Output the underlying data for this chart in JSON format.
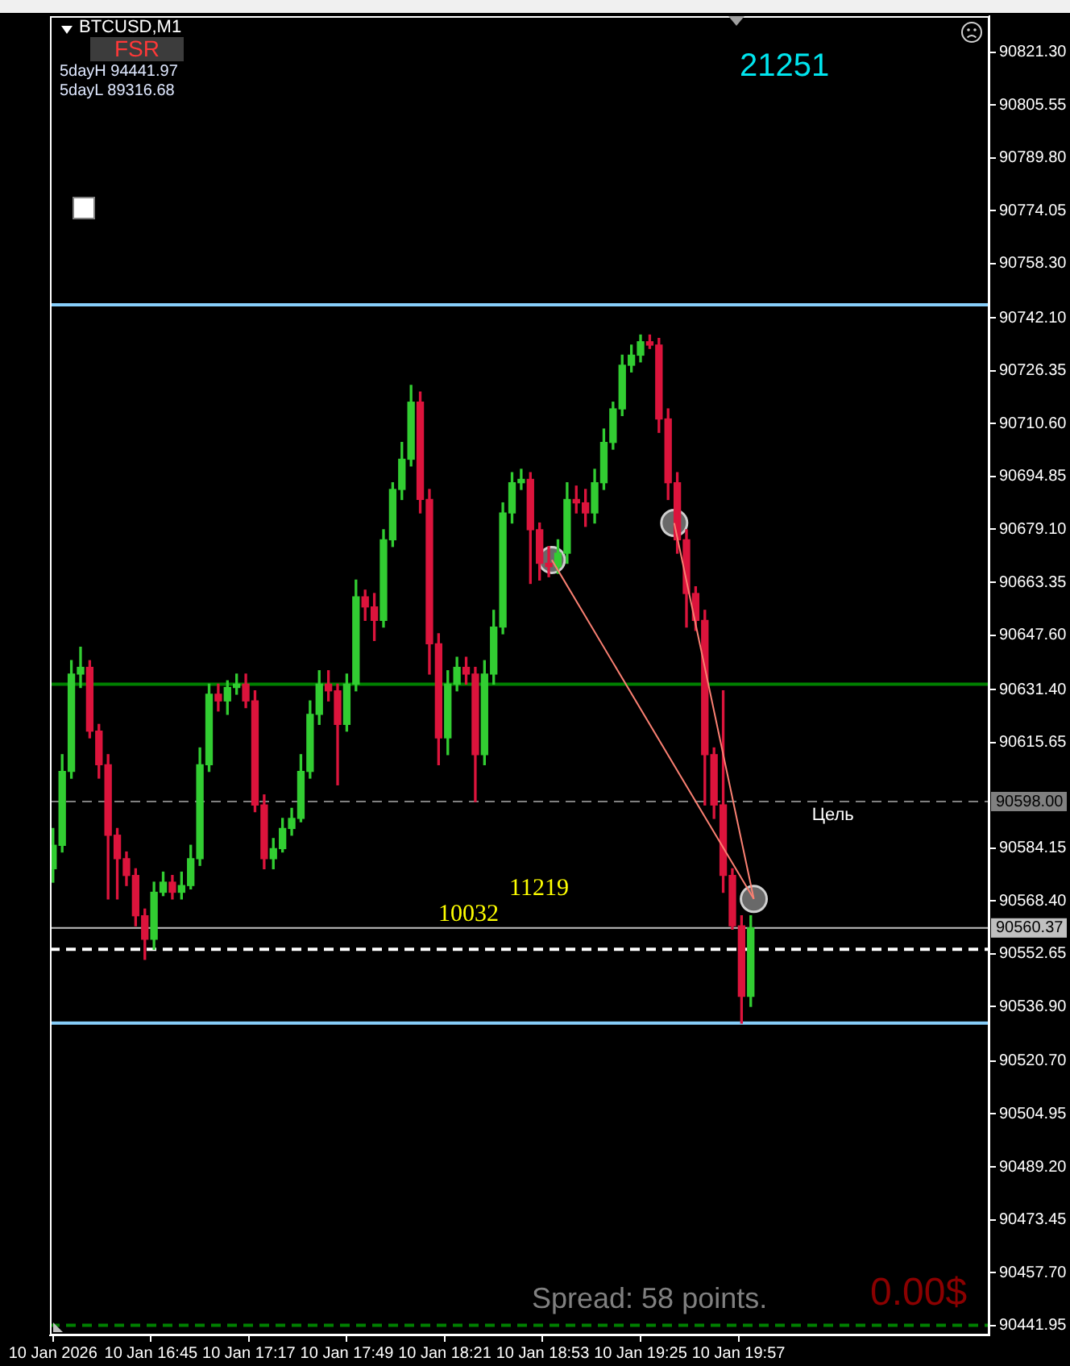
{
  "chart_data": {
    "type": "candlestick",
    "title": "BTCUSD,M1",
    "x": [
      "2026-01-10T16:13",
      "2026-01-10T16:16",
      "2026-01-10T16:19",
      "2026-01-10T16:22",
      "2026-01-10T16:25",
      "2026-01-10T16:28",
      "2026-01-10T16:31",
      "2026-01-10T16:34",
      "2026-01-10T16:37",
      "2026-01-10T16:40",
      "2026-01-10T16:43",
      "2026-01-10T16:46",
      "2026-01-10T16:49",
      "2026-01-10T16:52",
      "2026-01-10T16:55",
      "2026-01-10T16:58",
      "2026-01-10T17:01",
      "2026-01-10T17:04",
      "2026-01-10T17:07",
      "2026-01-10T17:10",
      "2026-01-10T17:13",
      "2026-01-10T17:16",
      "2026-01-10T17:19",
      "2026-01-10T17:22",
      "2026-01-10T17:25",
      "2026-01-10T17:28",
      "2026-01-10T17:31",
      "2026-01-10T17:34",
      "2026-01-10T17:37",
      "2026-01-10T17:40",
      "2026-01-10T17:43",
      "2026-01-10T17:46",
      "2026-01-10T17:49",
      "2026-01-10T17:52",
      "2026-01-10T17:55",
      "2026-01-10T17:58",
      "2026-01-10T18:01",
      "2026-01-10T18:04",
      "2026-01-10T18:07",
      "2026-01-10T18:10",
      "2026-01-10T18:13",
      "2026-01-10T18:16",
      "2026-01-10T18:19",
      "2026-01-10T18:22",
      "2026-01-10T18:25",
      "2026-01-10T18:28",
      "2026-01-10T18:31",
      "2026-01-10T18:34",
      "2026-01-10T18:37",
      "2026-01-10T18:40",
      "2026-01-10T18:43",
      "2026-01-10T18:46",
      "2026-01-10T18:49",
      "2026-01-10T18:52",
      "2026-01-10T18:55",
      "2026-01-10T18:58",
      "2026-01-10T19:01",
      "2026-01-10T19:04",
      "2026-01-10T19:07",
      "2026-01-10T19:10",
      "2026-01-10T19:13",
      "2026-01-10T19:16",
      "2026-01-10T19:19",
      "2026-01-10T19:22",
      "2026-01-10T19:25",
      "2026-01-10T19:28",
      "2026-01-10T19:31",
      "2026-01-10T19:34",
      "2026-01-10T19:37",
      "2026-01-10T19:40",
      "2026-01-10T19:43",
      "2026-01-10T19:46",
      "2026-01-10T19:49",
      "2026-01-10T19:52",
      "2026-01-10T19:55",
      "2026-01-10T19:58",
      "2026-01-10T20:01"
    ],
    "ohlc": [
      [
        90578,
        90590,
        90574,
        90585
      ],
      [
        90585,
        90612,
        90583,
        90607
      ],
      [
        90607,
        90640,
        90605,
        90636
      ],
      [
        90636,
        90644,
        90632,
        90638
      ],
      [
        90638,
        90640,
        90617,
        90619
      ],
      [
        90619,
        90621,
        90605,
        90609
      ],
      [
        90609,
        90612,
        90569,
        90588
      ],
      [
        90588,
        90590,
        90569,
        90581
      ],
      [
        90581,
        90583,
        90573,
        90576
      ],
      [
        90576,
        90578,
        90561,
        90564
      ],
      [
        90564,
        90566,
        90551,
        90557
      ],
      [
        90557,
        90574,
        90554,
        90571
      ],
      [
        90571,
        90577,
        90570,
        90574
      ],
      [
        90574,
        90576,
        90569,
        90571
      ],
      [
        90571,
        90577,
        90569,
        90573
      ],
      [
        90573,
        90585,
        90572,
        90581
      ],
      [
        90581,
        90614,
        90579,
        90609
      ],
      [
        90609,
        90633,
        90607,
        90630
      ],
      [
        90630,
        90633,
        90625,
        90628
      ],
      [
        90628,
        90634,
        90624,
        90632
      ],
      [
        90632,
        90636,
        90630,
        90633
      ],
      [
        90633,
        90636,
        90626,
        90628
      ],
      [
        90628,
        90631,
        90595,
        90597
      ],
      [
        90597,
        90600,
        90578,
        90581
      ],
      [
        90581,
        90587,
        90578,
        90584
      ],
      [
        90584,
        90593,
        90583,
        90590
      ],
      [
        90590,
        90596,
        90588,
        90593
      ],
      [
        90593,
        90612,
        90592,
        90607
      ],
      [
        90607,
        90628,
        90605,
        90624
      ],
      [
        90624,
        90637,
        90621,
        90633
      ],
      [
        90633,
        90637,
        90628,
        90631
      ],
      [
        90631,
        90633,
        90603,
        90621
      ],
      [
        90621,
        90636,
        90619,
        90633
      ],
      [
        90633,
        90664,
        90631,
        90659
      ],
      [
        90659,
        90661,
        90652,
        90656
      ],
      [
        90656,
        90660,
        90646,
        90652
      ],
      [
        90652,
        90679,
        90650,
        90676
      ],
      [
        90676,
        90693,
        90674,
        90691
      ],
      [
        90691,
        90705,
        90688,
        90700
      ],
      [
        90700,
        90722,
        90698,
        90717
      ],
      [
        90717,
        90720,
        90684,
        90688
      ],
      [
        90688,
        90691,
        90636,
        90645
      ],
      [
        90645,
        90648,
        90609,
        90617
      ],
      [
        90617,
        90637,
        90612,
        90633
      ],
      [
        90633,
        90641,
        90631,
        90638
      ],
      [
        90638,
        90641,
        90633,
        90636
      ],
      [
        90636,
        90638,
        90598,
        90612
      ],
      [
        90612,
        90640,
        90609,
        90636
      ],
      [
        90636,
        90655,
        90633,
        90650
      ],
      [
        90650,
        90687,
        90648,
        90684
      ],
      [
        90684,
        90696,
        90681,
        90693
      ],
      [
        90693,
        90697,
        90691,
        90694
      ],
      [
        90694,
        90696,
        90663,
        90679
      ],
      [
        90679,
        90681,
        90664,
        90669
      ],
      [
        90669,
        90674,
        90665,
        90668
      ],
      [
        90668,
        90676,
        90666,
        90672
      ],
      [
        90672,
        90693,
        90669,
        90688
      ],
      [
        90688,
        90692,
        90684,
        90687
      ],
      [
        90687,
        90691,
        90680,
        90684
      ],
      [
        90684,
        90697,
        90681,
        90693
      ],
      [
        90693,
        90709,
        90691,
        90705
      ],
      [
        90705,
        90717,
        90703,
        90715
      ],
      [
        90715,
        90731,
        90713,
        90728
      ],
      [
        90728,
        90734,
        90726,
        90731
      ],
      [
        90731,
        90737,
        90729,
        90735
      ],
      [
        90735,
        90737,
        90733,
        90734
      ],
      [
        90734,
        90736,
        90708,
        90712
      ],
      [
        90712,
        90715,
        90688,
        90693
      ],
      [
        90693,
        90696,
        90672,
        90676
      ],
      [
        90676,
        90679,
        90650,
        90660
      ],
      [
        90660,
        90662,
        90649,
        90652
      ],
      [
        90652,
        90655,
        90597,
        90612
      ],
      [
        90612,
        90614,
        90593,
        90597
      ],
      [
        90597,
        90631,
        90571,
        90576
      ],
      [
        90576,
        90578,
        90560,
        90561
      ],
      [
        90561,
        90564,
        90532,
        90540
      ],
      [
        90540,
        90564,
        90537,
        90560.37
      ]
    ],
    "colors": [
      "#32cd32",
      "#32cd32",
      "#32cd32",
      "#32cd32",
      "#dc143c",
      "#dc143c",
      "#dc143c",
      "#dc143c",
      "#dc143c",
      "#dc143c",
      "#dc143c",
      "#32cd32",
      "#32cd32",
      "#dc143c",
      "#32cd32",
      "#32cd32",
      "#32cd32",
      "#32cd32",
      "#dc143c",
      "#32cd32",
      "#32cd32",
      "#dc143c",
      "#dc143c",
      "#dc143c",
      "#32cd32",
      "#32cd32",
      "#32cd32",
      "#32cd32",
      "#32cd32",
      "#32cd32",
      "#dc143c",
      "#dc143c",
      "#32cd32",
      "#32cd32",
      "#dc143c",
      "#dc143c",
      "#32cd32",
      "#32cd32",
      "#32cd32",
      "#32cd32",
      "#dc143c",
      "#dc143c",
      "#dc143c",
      "#32cd32",
      "#32cd32",
      "#dc143c",
      "#dc143c",
      "#32cd32",
      "#32cd32",
      "#32cd32",
      "#32cd32",
      "#32cd32",
      "#dc143c",
      "#dc143c",
      "#dc143c",
      "#32cd32",
      "#32cd32",
      "#dc143c",
      "#dc143c",
      "#32cd32",
      "#32cd32",
      "#32cd32",
      "#32cd32",
      "#32cd32",
      "#32cd32",
      "#dc143c",
      "#dc143c",
      "#dc143c",
      "#dc143c",
      "#dc143c",
      "#dc143c",
      "#dc143c",
      "#dc143c",
      "#dc143c",
      "#dc143c",
      "#dc143c",
      "#32cd32"
    ],
    "series": [
      {
        "type": "line",
        "color": "#fa8072",
        "x": [
          "2026-01-10T18:56",
          "2026-01-10T20:02"
        ],
        "values": [
          90670,
          90569
        ]
      },
      {
        "type": "line",
        "color": "#fa8072",
        "x": [
          "2026-01-10T19:36",
          "2026-01-10T20:02"
        ],
        "values": [
          90681,
          90569
        ]
      },
      {
        "type": "scatter",
        "color": "#696969",
        "marker": "circle",
        "x": [
          "2026-01-10T18:56",
          "2026-01-10T19:36",
          "2026-01-10T20:02"
        ],
        "values": [
          90670,
          90681,
          90569
        ]
      }
    ],
    "xlim": [
      "2026-01-10T16:12",
      "2026-01-10T21:19"
    ],
    "xticks": [
      {
        "value": "2026-01-10T16:13",
        "label": "10 Jan 2026"
      },
      {
        "value": "2026-01-10T16:45",
        "label": "10 Jan 16:45"
      },
      {
        "value": "2026-01-10T17:17",
        "label": "10 Jan 17:17"
      },
      {
        "value": "2026-01-10T17:49",
        "label": "10 Jan 17:49"
      },
      {
        "value": "2026-01-10T18:21",
        "label": "10 Jan 18:21"
      },
      {
        "value": "2026-01-10T18:53",
        "label": "10 Jan 18:53"
      },
      {
        "value": "2026-01-10T19:25",
        "label": "10 Jan 19:25"
      },
      {
        "value": "2026-01-10T19:57",
        "label": "10 Jan 19:57"
      }
    ],
    "ylim": [
      90439,
      90832
    ],
    "yticks": [
      {
        "value": 90821.3,
        "label": "90821.30"
      },
      90805.55,
      {
        "value": 90789.8,
        "label": "90789.80"
      },
      90774.05,
      {
        "value": 90758.3,
        "label": "90758.30"
      },
      {
        "value": 90742.1,
        "label": "90742.10"
      },
      90726.35,
      {
        "value": 90710.6,
        "label": "90710.60"
      },
      90694.85,
      {
        "value": 90679.1,
        "label": "90679.10"
      },
      90663.35,
      {
        "value": 90647.6,
        "label": "90647.60"
      },
      {
        "value": 90631.4,
        "label": "90631.40"
      },
      90615.65,
      90584.15,
      {
        "value": 90568.4,
        "label": "90568.40"
      },
      90552.65,
      {
        "value": 90536.9,
        "label": "90536.90"
      },
      {
        "value": 90520.7,
        "label": "90520.70"
      },
      90504.95,
      {
        "value": 90489.2,
        "label": "90489.20"
      },
      90473.45,
      {
        "value": 90457.7,
        "label": "90457.70"
      },
      90441.95
    ],
    "ref_lines": [
      {
        "axis": "y",
        "value": 90746,
        "color": "#87cefa"
      },
      {
        "axis": "y",
        "value": 90633,
        "color": "#008000"
      },
      {
        "axis": "y",
        "value": 90598,
        "label": "90598.00",
        "color": "#808080",
        "line_style": "dashed"
      },
      {
        "axis": "y",
        "value": 90560.37,
        "label": "90560.37",
        "color": "#c0c0c0"
      },
      {
        "axis": "y",
        "value": 90554,
        "color": "#ffffff",
        "line_style": "dashed"
      },
      {
        "axis": "y",
        "value": 90532,
        "color": "#87cefa"
      },
      {
        "axis": "y",
        "value": 90442,
        "color": "#008000",
        "line_style": "dashed"
      }
    ],
    "annotations": [
      "FSR",
      "5dayH 94441.97",
      "5dayL 89316.68",
      "21251",
      "10032",
      "11219",
      "Spread: 58 points.",
      "0.00$",
      {
        "text": "Цель",
        "x": "2026-01-10T20:21",
        "y": 90598
      }
    ]
  }
}
